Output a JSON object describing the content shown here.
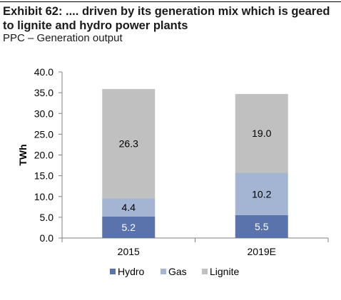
{
  "header": {
    "title": "Exhibit 62: .... driven by its generation mix which is geared to lignite and hydro power plants",
    "subtitle": "PPC – Generation output"
  },
  "colors": {
    "hydro": "#5a73ad",
    "gas": "#a4b4d3",
    "lignite": "#c0c0c0",
    "axis": "#808080",
    "text": "#000000"
  },
  "chart_data": {
    "type": "bar",
    "stacked": true,
    "categories": [
      "2015",
      "2019E"
    ],
    "series": [
      {
        "name": "Hydro",
        "values": [
          5.2,
          5.5
        ]
      },
      {
        "name": "Gas",
        "values": [
          4.4,
          10.2
        ]
      },
      {
        "name": "Lignite",
        "values": [
          26.3,
          19.0
        ]
      }
    ],
    "data_labels": [
      [
        "5.2",
        "5.5"
      ],
      [
        "4.4",
        "10.2"
      ],
      [
        "26.3",
        "19.0"
      ]
    ],
    "ylabel": "TWh",
    "xlabel": "",
    "ylim": [
      0,
      40
    ],
    "yticks": [
      "0.0",
      "5.0",
      "10.0",
      "15.0",
      "20.0",
      "25.0",
      "30.0",
      "35.0",
      "40.0"
    ],
    "grid": false,
    "legend_position": "bottom"
  }
}
